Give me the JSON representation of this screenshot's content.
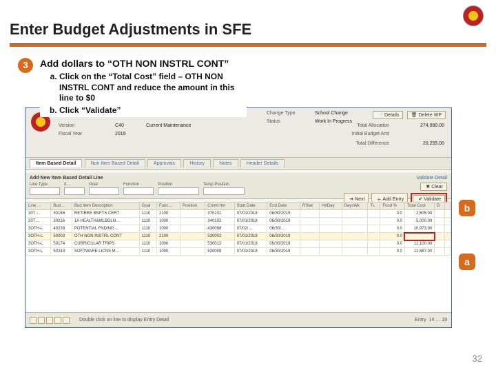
{
  "page": {
    "title": "Enter Budget Adjustments in SFE",
    "step_number": "3",
    "page_number": "32",
    "instruction_head": "Add dollars to “OTH NON INSTRL CONT”",
    "instruction_a": "Click on the “Total Cost” field – OTH NON INSTRL CONT and reduce the amount in this line to $0",
    "instruction_b": "Click “Validate”",
    "callout_a": "a",
    "callout_b": "b"
  },
  "app": {
    "btn_details": "Details",
    "btn_delete_wp": "Delete WP",
    "change_type_lbl": "Change Type",
    "change_type_val": "School Change",
    "status_lbl": "Status",
    "status_val": "Work In Progress",
    "version_lbl": "Version",
    "version_val": "C40",
    "year_lbl": "Fiscal Year",
    "year_val": "2019",
    "maint_lbl": "Current Maintenance",
    "total_alloc_lbl": "Total Allocation",
    "total_alloc_val": "274,090.00",
    "initial_budget_lbl": "Initial Budget Amt",
    "total_diff_lbl": "Total Difference",
    "total_diff_val": "20,255.00",
    "tabs": {
      "t1": "Item Based Detail",
      "t2": "Non Item Based Detail",
      "t3": "Approvals",
      "t4": "History",
      "t5": "Notes",
      "t6": "Header Details"
    },
    "addline_title": "Add New Item Based Detail Line",
    "fields": {
      "line_type": "Line Type",
      "it": "It…",
      "goal": "Goal",
      "function": "Function",
      "position": "Position",
      "temp_pos": "Temp Position"
    },
    "validate_detail": "Validate Detail",
    "btn_next": "Next",
    "btn_clear": "Clear",
    "btn_add_entry": "Add Entry",
    "btn_validate": "Validate",
    "footer_msg": "Double click on line to display Entry Detail",
    "footer_entry_lbl": "Entry",
    "footer_entry_val": "14 … 19",
    "columns": {
      "line": "Line …",
      "bud": "Bud…",
      "desc": "Bud Item Description",
      "goal": "Goal",
      "func": "Func…",
      "pos": "Position",
      "cmmt": "Cmmt Itm",
      "start": "Start Date",
      "end": "End Date",
      "rstat": "RStat",
      "hd": "HrlDay",
      "dw": "DaysWk",
      "tl": "TL",
      "fund": "Fund %",
      "cost": "Total Cost",
      "d": "D",
      "flag": " "
    },
    "rows": [
      {
        "line": "30T…",
        "bud": "30166",
        "desc": "RETIREE BNFTS CERT",
        "goal": "1110",
        "func": "2100",
        "pos": "",
        "cmmt": "370101",
        "start": "07/01/2018",
        "end": "06/30/2019",
        "hd": "",
        "dw": "",
        "fund": "0.0",
        "cost": "2,505.00"
      },
      {
        "line": "20T…",
        "bud": "30216",
        "desc": "1A HEALTH&MLBDLN…",
        "goal": "1110",
        "func": "1000",
        "pos": "",
        "cmmt": "340102",
        "start": "07/01/2018",
        "end": "06/30/2019",
        "hd": "",
        "dw": "",
        "fund": "0.0",
        "cost": "5,000.00"
      },
      {
        "line": "3OTH-L",
        "bud": "40239",
        "desc": "POTENTIAL FNDING…",
        "goal": "1110",
        "func": "1000",
        "pos": "",
        "cmmt": "430098",
        "start": "07/02/…",
        "end": "06/30/…",
        "hd": "",
        "dw": "",
        "fund": "0.0",
        "cost": "10,973.00"
      },
      {
        "line": "3OTH-L",
        "bud": "50003",
        "desc": "OTH NON INSTRL CONT",
        "goal": "1110",
        "func": "2100",
        "pos": "",
        "cmmt": "530002",
        "start": "07/01/2018",
        "end": "06/30/2019",
        "hd": "",
        "dw": "",
        "fund": "0.0",
        "cost": "",
        "hl": true
      },
      {
        "line": "3OTH-L",
        "bud": "50174",
        "desc": "CURRICULAR TRIPS",
        "goal": "1110",
        "func": "1000",
        "pos": "",
        "cmmt": "530012",
        "start": "07/01/2018",
        "end": "06/30/2019",
        "hd": "",
        "dw": "",
        "fund": "0.0",
        "cost": "11,100.00"
      },
      {
        "line": "3OTH-L",
        "bud": "50243",
        "desc": "SOFTWARE LICNS M…",
        "goal": "1110",
        "func": "1000",
        "pos": "",
        "cmmt": "530009",
        "start": "07/01/2018",
        "end": "06/30/2019",
        "hd": "",
        "dw": "",
        "fund": "0.0",
        "cost": "11,687.00"
      }
    ]
  },
  "colors": {
    "accent": "#d86a1e",
    "highlight": "#c02020",
    "link": "#3b6ea5"
  }
}
